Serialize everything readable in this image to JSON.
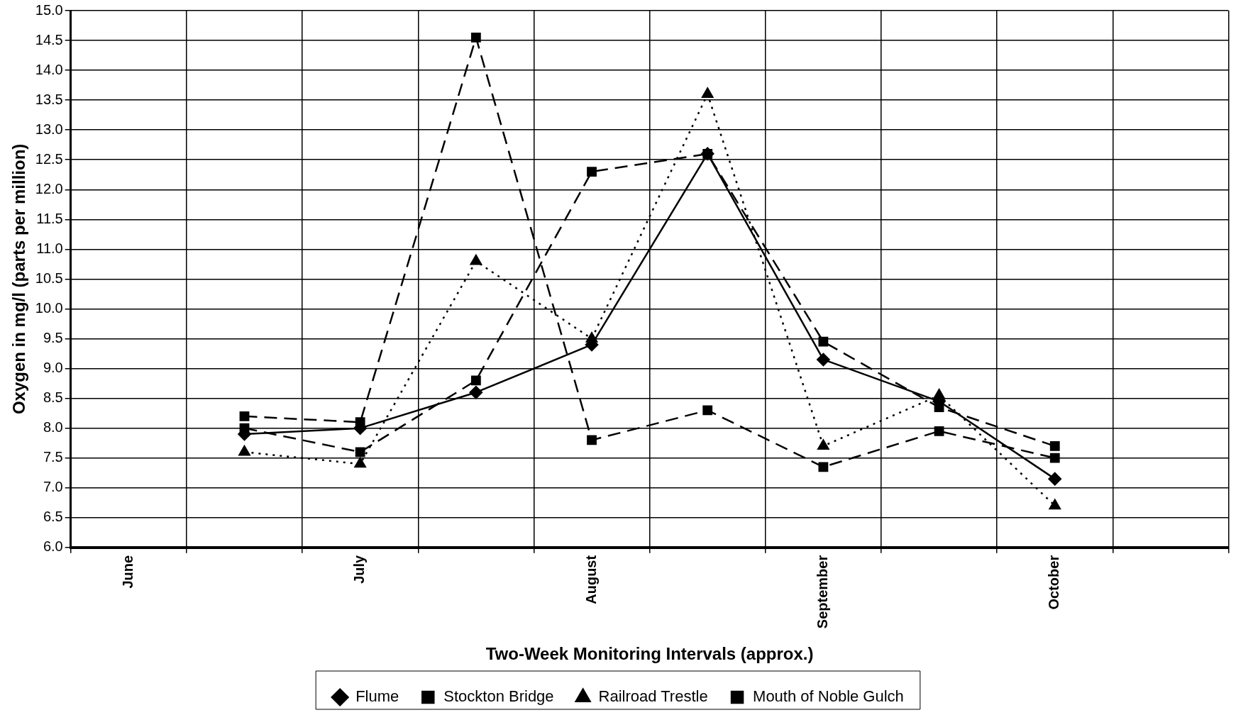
{
  "chart_data": {
    "type": "line",
    "xlabel": "Two-Week Monitoring Intervals (approx.)",
    "ylabel": "Oxygen in mg/l (parts per million)",
    "categories": [
      "June",
      null,
      "July",
      null,
      "August",
      null,
      "September",
      null,
      "October",
      null
    ],
    "series": [
      {
        "name": "Flume",
        "color": "#000000",
        "marker": "diamond",
        "line_style": "solid",
        "values": [
          null,
          7.9,
          8.0,
          8.6,
          9.4,
          12.6,
          9.15,
          8.45,
          7.15,
          null
        ]
      },
      {
        "name": "Stockton Bridge",
        "color": "#000000",
        "marker": "square",
        "line_style": "dashed",
        "values": [
          null,
          8.0,
          7.6,
          8.8,
          12.3,
          12.6,
          9.45,
          8.35,
          7.7,
          null
        ]
      },
      {
        "name": "Railroad Trestle",
        "color": "#000000",
        "marker": "triangle",
        "line_style": "dotted",
        "values": [
          null,
          7.6,
          7.4,
          10.8,
          9.5,
          13.6,
          7.7,
          8.55,
          6.7,
          null
        ]
      },
      {
        "name": "Mouth of Noble Gulch",
        "color": "#000000",
        "marker": "square",
        "line_style": "dashed",
        "values": [
          null,
          8.2,
          8.1,
          14.55,
          7.8,
          8.3,
          7.35,
          7.95,
          7.5,
          null
        ]
      }
    ],
    "ylim": [
      6,
      15
    ],
    "yticks": [
      {
        "value": 6,
        "label": "6.0"
      },
      {
        "value": 6.5,
        "label": "6.5"
      },
      {
        "value": 7,
        "label": "7.0"
      },
      {
        "value": 7.5,
        "label": "7.5"
      },
      {
        "value": 8,
        "label": "8.0"
      },
      {
        "value": 8.5,
        "label": "8.5"
      },
      {
        "value": 9,
        "label": "9.0"
      },
      {
        "value": 9.5,
        "label": "9.5"
      },
      {
        "value": 10,
        "label": "10.0"
      },
      {
        "value": 10.5,
        "label": "10.5"
      },
      {
        "value": 11,
        "label": "11.0"
      },
      {
        "value": 11.5,
        "label": "11.5"
      },
      {
        "value": 12,
        "label": "12.0"
      },
      {
        "value": 12.5,
        "label": "12.5"
      },
      {
        "value": 13,
        "label": "13.0"
      },
      {
        "value": 13.5,
        "label": "13.5"
      },
      {
        "value": 14,
        "label": "14.0"
      },
      {
        "value": 14.5,
        "label": "14.5"
      },
      {
        "value": 15,
        "label": "15.0"
      }
    ],
    "grid": true,
    "legend": "bottom"
  }
}
